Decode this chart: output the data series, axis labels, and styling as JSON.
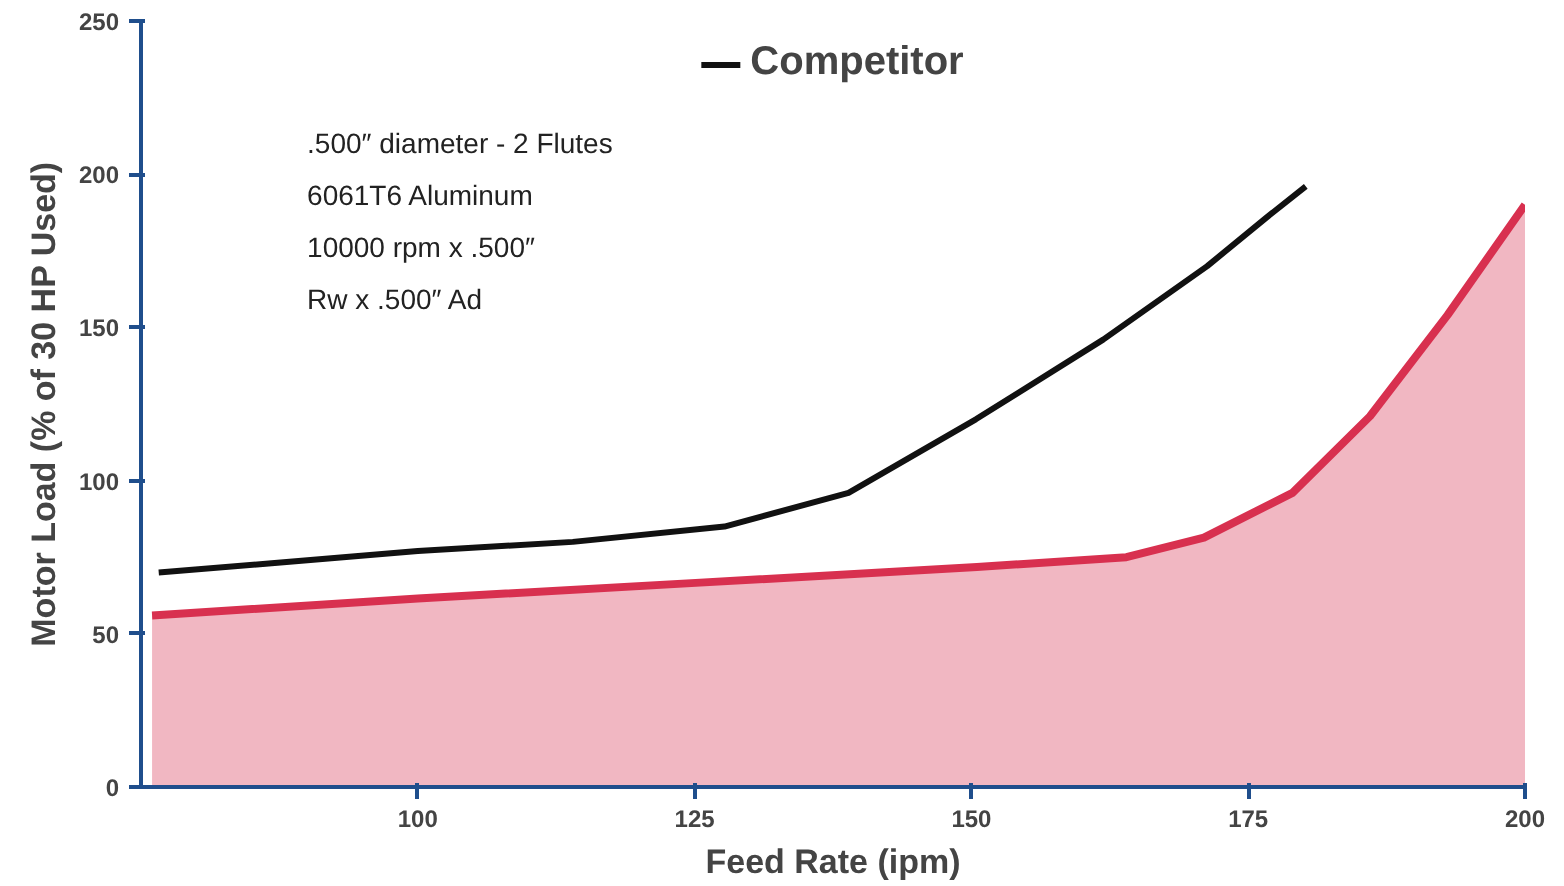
{
  "chart_data": {
    "type": "line",
    "xlabel": "Feed Rate (ipm)",
    "ylabel": "Motor Load (% of 30 HP Used)",
    "xlim": [
      75,
      200
    ],
    "xticks": [
      100,
      125,
      150,
      175,
      200
    ],
    "ylim": [
      0,
      250
    ],
    "yticks": [
      0,
      50,
      100,
      150,
      200,
      250
    ],
    "grid": false,
    "legend": "top",
    "marker": "none",
    "line_style": "solid",
    "annotations": [
      ".500″ diameter - 2 Flutes",
      "6061T6 Aluminum",
      "10000 rpm x .500″",
      "Rw x .500″ Ad"
    ],
    "series": [
      {
        "name": "Competitor",
        "color": "#111111",
        "x": [
          76.6,
          86.8,
          100,
          114,
          127.7,
          138.9,
          150.4,
          161.9,
          171.3,
          176.7,
          180.2
        ],
        "values": [
          70,
          73,
          77,
          80,
          85,
          96,
          120,
          146,
          170,
          186,
          196
        ]
      },
      {
        "type": "area",
        "color": "#d8304f",
        "x": [
          76,
          100,
          125.5,
          150.5,
          164,
          171,
          179,
          186,
          193,
          200
        ],
        "values": [
          56,
          61.5,
          66.7,
          71.8,
          75,
          81.4,
          96,
          121,
          154,
          190
        ]
      }
    ]
  }
}
